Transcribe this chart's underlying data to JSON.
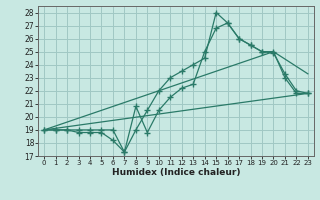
{
  "xlabel": "Humidex (Indice chaleur)",
  "xlim": [
    -0.5,
    23.5
  ],
  "ylim": [
    17,
    28.5
  ],
  "xticks": [
    0,
    1,
    2,
    3,
    4,
    5,
    6,
    7,
    8,
    9,
    10,
    11,
    12,
    13,
    14,
    15,
    16,
    17,
    18,
    19,
    20,
    21,
    22,
    23
  ],
  "yticks": [
    17,
    18,
    19,
    20,
    21,
    22,
    23,
    24,
    25,
    26,
    27,
    28
  ],
  "background_color": "#c8e8e2",
  "grid_color": "#a0c8c4",
  "line_color": "#2a7a68",
  "series": [
    {
      "x": [
        0,
        1,
        2,
        3,
        4,
        5,
        6,
        7,
        8,
        9,
        10,
        11,
        12,
        13,
        14,
        15,
        16,
        17,
        18,
        19,
        20,
        21,
        22,
        23
      ],
      "y": [
        19,
        19,
        19,
        18.8,
        18.8,
        18.8,
        18.2,
        17.3,
        20.8,
        18.8,
        20.5,
        21.5,
        22.2,
        22.5,
        25.0,
        26.8,
        27.2,
        26.0,
        25.5,
        25.0,
        24.9,
        23.3,
        22.0,
        21.8
      ],
      "marker": true
    },
    {
      "x": [
        0,
        1,
        2,
        3,
        4,
        5,
        6,
        7,
        8,
        9,
        10,
        11,
        12,
        13,
        14,
        15,
        16,
        17,
        18,
        19,
        20,
        21,
        22,
        23
      ],
      "y": [
        19,
        19,
        19,
        19,
        19,
        19,
        19,
        17.3,
        19.0,
        20.5,
        22.0,
        23.0,
        23.5,
        24.0,
        24.5,
        28.0,
        27.2,
        26.0,
        25.5,
        25.0,
        25.0,
        23.0,
        21.8,
        21.8
      ],
      "marker": true
    },
    {
      "x": [
        0,
        23
      ],
      "y": [
        19,
        21.8
      ],
      "marker": false
    },
    {
      "x": [
        0,
        20,
        23
      ],
      "y": [
        19,
        25.0,
        23.3
      ],
      "marker": false
    }
  ]
}
